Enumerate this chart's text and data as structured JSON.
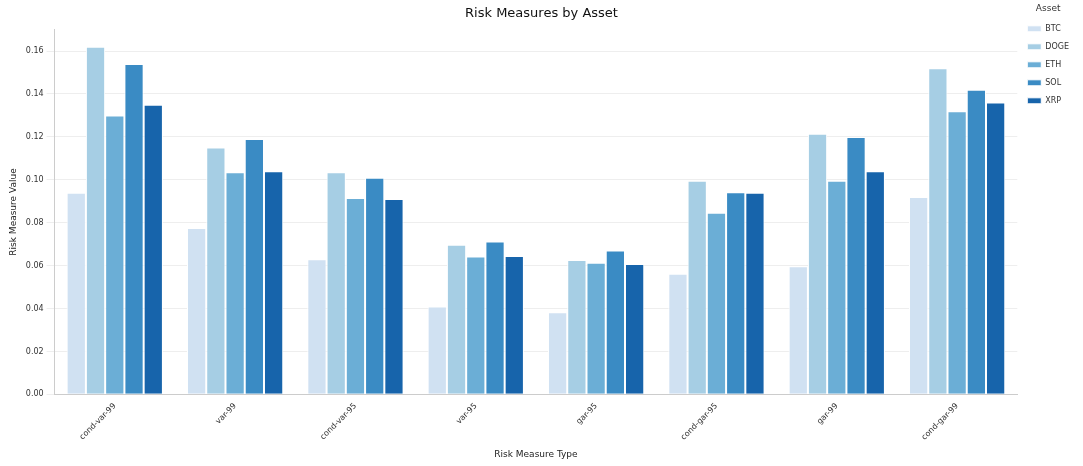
{
  "chart_data": {
    "type": "bar",
    "title": "Risk Measures by Asset",
    "xlabel": "Risk Measure Type",
    "ylabel": "Risk Measure Value",
    "legend_title": "Asset",
    "legend": "top right",
    "grid": "y",
    "categories": [
      "cond-var-99",
      "var-99",
      "cond-var-95",
      "var-95",
      "gar-95",
      "cond-gar-95",
      "gar-99",
      "cond-gar-99"
    ],
    "ylim": [
      0,
      0.17
    ],
    "yticks": [
      {
        "value": 0,
        "label": "0.00"
      },
      0.02,
      0.04,
      0.06,
      0.08,
      {
        "value": 0.1,
        "label": "0.10"
      },
      0.12,
      0.14,
      0.16
    ],
    "series": [
      {
        "name": "BTC",
        "color": "#d0e1f2",
        "values": [
          0.094,
          0.0775,
          0.063,
          0.041,
          0.0383,
          0.0562,
          0.0597,
          0.092
        ]
      },
      {
        "name": "DOGE",
        "color": "#a6cee4",
        "values": [
          0.162,
          0.115,
          0.1035,
          0.0697,
          0.0626,
          0.0995,
          0.1215,
          0.152
        ]
      },
      {
        "name": "ETH",
        "color": "#6baed6",
        "values": [
          0.13,
          0.1035,
          0.0915,
          0.0643,
          0.0613,
          0.0847,
          0.0995,
          0.132
        ]
      },
      {
        "name": "SOL",
        "color": "#3a8bc4",
        "values": [
          0.154,
          0.119,
          0.101,
          0.0713,
          0.067,
          0.0942,
          0.12,
          0.142
        ]
      },
      {
        "name": "XRP",
        "color": "#1764ab",
        "values": [
          0.135,
          0.104,
          0.091,
          0.0645,
          0.0607,
          0.094,
          0.104,
          0.136
        ]
      }
    ]
  }
}
